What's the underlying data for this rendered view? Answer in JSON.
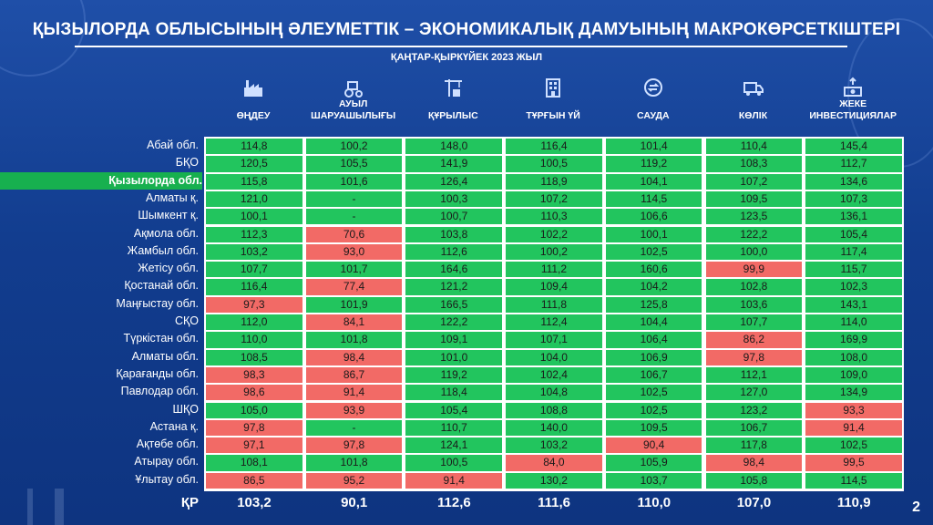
{
  "header": {
    "title": "ҚЫЗЫЛОРДА ОБЛЫСЫНЫҢ ӘЛЕУМЕТТІК – ЭКОНОМИКАЛЫҚ ДАМУЫНЫҢ МАКРОКӨРСЕТКІШТЕРІ",
    "subtitle": "ҚАҢТАР-ҚЫРКҮЙЕК 2023 ЖЫЛ",
    "page_number": "2"
  },
  "columns": [
    {
      "label": "ӨҢДЕУ",
      "icon": "factory-icon"
    },
    {
      "label": "АУЫЛ ШАРУАШЫЛЫҒЫ",
      "icon": "tractor-icon"
    },
    {
      "label": "ҚҰРЫЛЫС",
      "icon": "construction-crane-icon"
    },
    {
      "label": "ТҰРҒЫН ҮЙ",
      "icon": "apartment-building-icon"
    },
    {
      "label": "САУДА",
      "icon": "trade-exchange-icon"
    },
    {
      "label": "КӨЛІК",
      "icon": "truck-icon"
    },
    {
      "label": "ЖЕКЕ ИНВЕСТИЦИЯЛАР",
      "icon": "money-investment-icon"
    }
  ],
  "colors": {
    "above_100": "#22c55e",
    "below_100": "#f26a66",
    "highlight_row": "#17b04f"
  },
  "highlighted_region": "Қызылорда обл.",
  "chart_data": {
    "type": "table",
    "title": "ҚЫЗЫЛОРДА ОБЛЫСЫНЫҢ ӘЛЕУМЕТТІК – ЭКОНОМИКАЛЫҚ ДАМУЫНЫҢ МАКРОКӨРСЕТКІШТЕРІ",
    "subtitle": "ҚАҢТАР-ҚЫРКҮЙЕК 2023 ЖЫЛ",
    "columns": [
      "ӨҢДЕУ",
      "АУЫЛ ШАРУАШЫЛЫҒЫ",
      "ҚҰРЫЛЫС",
      "ТҰРҒЫН ҮЙ",
      "САУДА",
      "КӨЛІК",
      "ЖЕКЕ ИНВЕСТИЦИЯЛАР"
    ],
    "rows": [
      {
        "region": "Абай обл.",
        "values": [
          "114,8",
          "100,2",
          "148,0",
          "116,4",
          "101,4",
          "110,4",
          "145,4"
        ]
      },
      {
        "region": "БҚО",
        "values": [
          "120,5",
          "105,5",
          "141,9",
          "100,5",
          "119,2",
          "108,3",
          "112,7"
        ]
      },
      {
        "region": "Қызылорда обл.",
        "values": [
          "115,8",
          "101,6",
          "126,4",
          "118,9",
          "104,1",
          "107,2",
          "134,6"
        ]
      },
      {
        "region": "Алматы қ.",
        "values": [
          "121,0",
          "-",
          "100,3",
          "107,2",
          "114,5",
          "109,5",
          "107,3"
        ]
      },
      {
        "region": "Шымкент қ.",
        "values": [
          "100,1",
          "-",
          "100,7",
          "110,3",
          "106,6",
          "123,5",
          "136,1"
        ]
      },
      {
        "region": "Ақмола обл.",
        "values": [
          "112,3",
          "70,6",
          "103,8",
          "102,2",
          "100,1",
          "122,2",
          "105,4"
        ]
      },
      {
        "region": "Жамбыл обл.",
        "values": [
          "103,2",
          "93,0",
          "112,6",
          "100,2",
          "102,5",
          "100,0",
          "117,4"
        ]
      },
      {
        "region": "Жетісу обл.",
        "values": [
          "107,7",
          "101,7",
          "164,6",
          "111,2",
          "160,6",
          "99,9",
          "115,7"
        ]
      },
      {
        "region": "Қостанай обл.",
        "values": [
          "116,4",
          "77,4",
          "121,2",
          "109,4",
          "104,2",
          "102,8",
          "102,3"
        ]
      },
      {
        "region": "Маңғыстау обл.",
        "values": [
          "97,3",
          "101,9",
          "166,5",
          "111,8",
          "125,8",
          "103,6",
          "143,1"
        ]
      },
      {
        "region": "СҚО",
        "values": [
          "112,0",
          "84,1",
          "122,2",
          "112,4",
          "104,4",
          "107,7",
          "114,0"
        ]
      },
      {
        "region": "Түркістан обл.",
        "values": [
          "110,0",
          "101,8",
          "109,1",
          "107,1",
          "106,4",
          "86,2",
          "169,9"
        ]
      },
      {
        "region": "Алматы обл.",
        "values": [
          "108,5",
          "98,4",
          "101,0",
          "104,0",
          "106,9",
          "97,8",
          "108,0"
        ]
      },
      {
        "region": "Қарағанды обл.",
        "values": [
          "98,3",
          "86,7",
          "119,2",
          "102,4",
          "106,7",
          "112,1",
          "109,0"
        ]
      },
      {
        "region": "Павлодар обл.",
        "values": [
          "98,6",
          "91,4",
          "118,4",
          "104,8",
          "102,5",
          "127,0",
          "134,9"
        ]
      },
      {
        "region": "ШҚО",
        "values": [
          "105,0",
          "93,9",
          "105,4",
          "108,8",
          "102,5",
          "123,2",
          "93,3"
        ]
      },
      {
        "region": "Астана қ.",
        "values": [
          "97,8",
          "-",
          "110,7",
          "140,0",
          "109,5",
          "106,7",
          "91,4"
        ]
      },
      {
        "region": "Ақтөбе обл.",
        "values": [
          "97,1",
          "97,8",
          "124,1",
          "103,2",
          "90,4",
          "117,8",
          "102,5"
        ]
      },
      {
        "region": "Атырау обл.",
        "values": [
          "108,1",
          "101,8",
          "100,5",
          "84,0",
          "105,9",
          "98,4",
          "99,5"
        ]
      },
      {
        "region": "Ұлытау обл.",
        "values": [
          "86,5",
          "95,2",
          "91,4",
          "130,2",
          "103,7",
          "105,8",
          "114,5"
        ]
      }
    ],
    "total": {
      "region": "ҚР",
      "values": [
        "103,2",
        "90,1",
        "112,6",
        "111,6",
        "110,0",
        "107,0",
        "110,9"
      ]
    }
  }
}
